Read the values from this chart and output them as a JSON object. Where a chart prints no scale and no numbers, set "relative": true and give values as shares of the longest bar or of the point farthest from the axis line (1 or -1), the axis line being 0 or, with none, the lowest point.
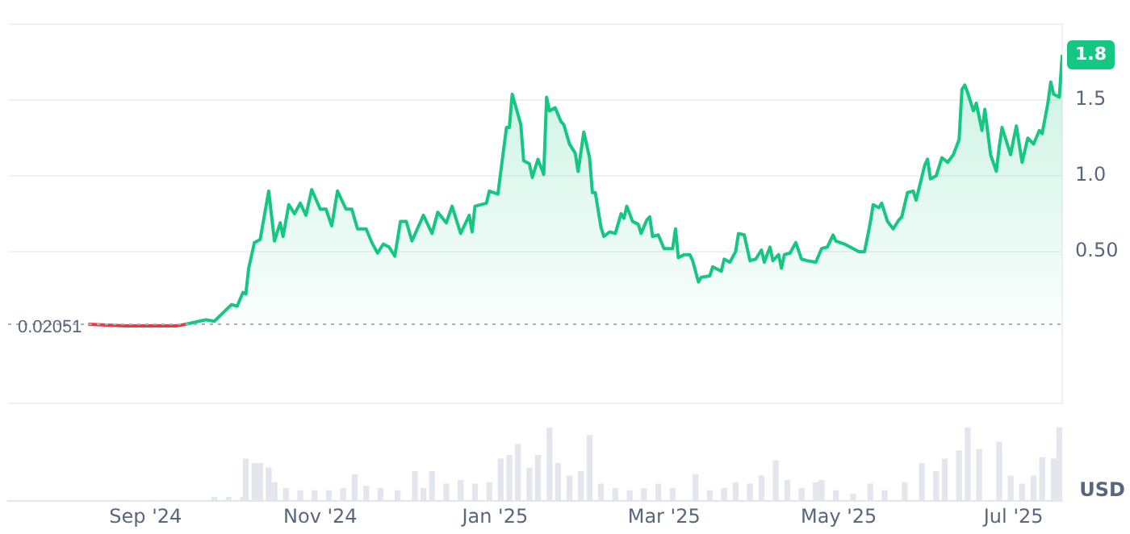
{
  "chart_data": [
    {
      "type": "line",
      "xlim": [
        "2024-07-15",
        "2025-07-18"
      ],
      "ylim": [
        -0.5,
        2.0
      ],
      "yticks": [
        {
          "value": -0.5,
          "label": null
        },
        {
          "value": 0.5,
          "label": "0.50"
        },
        {
          "value": 1,
          "label": "1.0"
        },
        {
          "value": 1.5,
          "label": "1.5"
        },
        {
          "value": 2.0,
          "label": null
        }
      ],
      "tick_labels": "y",
      "grid": "y",
      "legend": false,
      "marker": "none",
      "line_style": "solid",
      "ref_lines": [
        {
          "axis": "y",
          "value": 0.02051,
          "label": "0.02051",
          "color": "#a6b0c3",
          "line_style": "dotted"
        }
      ],
      "annotations": [
        {
          "text": "1.8",
          "x": "2025-07-18",
          "y": 1.8
        }
      ],
      "series": [
        {
          "color": "#ea3943",
          "x": [
            "2024-08-12",
            "2024-08-25",
            "2024-09-12",
            "2024-09-15"
          ],
          "values": [
            0.02,
            0.01,
            0.01,
            0.02
          ]
        },
        {
          "type": "area",
          "color": "#16c784",
          "x": [
            "2024-09-15",
            "2024-09-22",
            "2024-09-25",
            "2024-10-01",
            "2024-10-03",
            "2024-10-05",
            "2024-10-06",
            "2024-10-07",
            "2024-10-09",
            "2024-10-11",
            "2024-10-14",
            "2024-10-16",
            "2024-10-18",
            "2024-10-19",
            "2024-10-21",
            "2024-10-23",
            "2024-10-25",
            "2024-10-27",
            "2024-10-29",
            "2024-11-01",
            "2024-11-03",
            "2024-11-05",
            "2024-11-07",
            "2024-11-10",
            "2024-11-12",
            "2024-11-14",
            "2024-11-17",
            "2024-11-19",
            "2024-11-21",
            "2024-11-23",
            "2024-11-25",
            "2024-11-27",
            "2024-11-29",
            "2024-12-01",
            "2024-12-03",
            "2024-12-07",
            "2024-12-10",
            "2024-12-12",
            "2024-12-15",
            "2024-12-17",
            "2024-12-20",
            "2024-12-23",
            "2024-12-24",
            "2024-12-25",
            "2024-12-29",
            "2024-12-30",
            "2025-01-02",
            "2025-01-05",
            "2025-01-06",
            "2025-01-07",
            "2025-01-10",
            "2025-01-11",
            "2025-01-13",
            "2025-01-14",
            "2025-01-16",
            "2025-01-18",
            "2025-01-19",
            "2025-01-20",
            "2025-01-22",
            "2025-01-24",
            "2025-01-25",
            "2025-01-27",
            "2025-01-29",
            "2025-01-30",
            "2025-02-01",
            "2025-02-03",
            "2025-02-04",
            "2025-02-05",
            "2025-02-07",
            "2025-02-08",
            "2025-02-10",
            "2025-02-12",
            "2025-02-14",
            "2025-02-15",
            "2025-02-16",
            "2025-02-18",
            "2025-02-20",
            "2025-02-21",
            "2025-02-23",
            "2025-02-24",
            "2025-02-25",
            "2025-02-27",
            "2025-03-01",
            "2025-03-04",
            "2025-03-05",
            "2025-03-06",
            "2025-03-08",
            "2025-03-10",
            "2025-03-11",
            "2025-03-13",
            "2025-03-14",
            "2025-03-17",
            "2025-03-18",
            "2025-03-21",
            "2025-03-22",
            "2025-03-24",
            "2025-03-26",
            "2025-03-27",
            "2025-03-29",
            "2025-03-31",
            "2025-04-02",
            "2025-04-04",
            "2025-04-05",
            "2025-04-07",
            "2025-04-08",
            "2025-04-10",
            "2025-04-11",
            "2025-04-12",
            "2025-04-14",
            "2025-04-16",
            "2025-04-18",
            "2025-04-20",
            "2025-04-23",
            "2025-04-25",
            "2025-04-27",
            "2025-04-29",
            "2025-04-30",
            "2025-05-03",
            "2025-05-05",
            "2025-05-08",
            "2025-05-10",
            "2025-05-12",
            "2025-05-13",
            "2025-05-15",
            "2025-05-16",
            "2025-05-18",
            "2025-05-20",
            "2025-05-22",
            "2025-05-23",
            "2025-05-25",
            "2025-05-27",
            "2025-05-28",
            "2025-05-31",
            "2025-06-01",
            "2025-06-02",
            "2025-06-04",
            "2025-06-06",
            "2025-06-08",
            "2025-06-10",
            "2025-06-12",
            "2025-06-13",
            "2025-06-14",
            "2025-06-15",
            "2025-06-17",
            "2025-06-18",
            "2025-06-20",
            "2025-06-21",
            "2025-06-23",
            "2025-06-25",
            "2025-06-26",
            "2025-06-27",
            "2025-06-30",
            "2025-07-01",
            "2025-07-02",
            "2025-07-04",
            "2025-07-06",
            "2025-07-08",
            "2025-07-10",
            "2025-07-11",
            "2025-07-13",
            "2025-07-14",
            "2025-07-15",
            "2025-07-17",
            "2025-07-18"
          ],
          "values": [
            0.02,
            0.05,
            0.04,
            0.15,
            0.14,
            0.23,
            0.22,
            0.39,
            0.56,
            0.58,
            0.9,
            0.57,
            0.69,
            0.6,
            0.81,
            0.75,
            0.82,
            0.74,
            0.91,
            0.78,
            0.78,
            0.67,
            0.9,
            0.78,
            0.78,
            0.65,
            0.65,
            0.56,
            0.49,
            0.55,
            0.53,
            0.47,
            0.7,
            0.7,
            0.57,
            0.74,
            0.62,
            0.76,
            0.69,
            0.8,
            0.62,
            0.74,
            0.63,
            0.8,
            0.82,
            0.9,
            0.88,
            1.32,
            1.32,
            1.54,
            1.34,
            1.1,
            1.08,
            0.99,
            1.11,
            1.01,
            1.52,
            1.43,
            1.45,
            1.36,
            1.34,
            1.21,
            1.15,
            1.03,
            1.29,
            1.12,
            0.89,
            0.89,
            0.66,
            0.6,
            0.63,
            0.62,
            0.75,
            0.72,
            0.8,
            0.7,
            0.68,
            0.62,
            0.71,
            0.73,
            0.6,
            0.61,
            0.52,
            0.52,
            0.65,
            0.46,
            0.48,
            0.48,
            0.44,
            0.3,
            0.33,
            0.34,
            0.4,
            0.37,
            0.45,
            0.43,
            0.5,
            0.62,
            0.61,
            0.44,
            0.45,
            0.51,
            0.43,
            0.53,
            0.44,
            0.48,
            0.39,
            0.48,
            0.49,
            0.56,
            0.45,
            0.44,
            0.43,
            0.52,
            0.53,
            0.61,
            0.57,
            0.55,
            0.53,
            0.5,
            0.5,
            0.69,
            0.81,
            0.79,
            0.82,
            0.7,
            0.65,
            0.71,
            0.73,
            0.89,
            0.9,
            0.84,
            1.07,
            1.11,
            0.98,
            1.0,
            1.12,
            1.09,
            1.14,
            1.24,
            1.57,
            1.6,
            1.55,
            1.43,
            1.48,
            1.3,
            1.44,
            1.14,
            1.03,
            1.19,
            1.32,
            1.14,
            1.24,
            1.33,
            1.09,
            1.25,
            1.21,
            1.3,
            1.28,
            1.48,
            1.62,
            1.54,
            1.52,
            1.8
          ]
        }
      ]
    },
    {
      "type": "bar",
      "relative": true,
      "xlim": [
        "2024-07-15",
        "2025-07-18"
      ],
      "xticks": [
        {
          "value": "2024-09-01",
          "label": "Sep '24"
        },
        {
          "value": "2024-11-01",
          "label": "Nov '24"
        },
        {
          "value": "2025-01-01",
          "label": "Jan '25"
        },
        {
          "value": "2025-03-01",
          "label": "Mar '25"
        },
        {
          "value": "2025-05-01",
          "label": "May '25"
        },
        {
          "value": "2025-07-01",
          "label": "Jul '25"
        }
      ],
      "tick_labels": "x",
      "legend": false,
      "annotations": [
        "USD"
      ],
      "series": [
        {
          "color": "#e3e6ed",
          "x": [
            "2024-09-25",
            "2024-09-30",
            "2024-10-05",
            "2024-10-06",
            "2024-10-09",
            "2024-10-11",
            "2024-10-14",
            "2024-10-16",
            "2024-10-20",
            "2024-10-25",
            "2024-10-30",
            "2024-11-04",
            "2024-11-09",
            "2024-11-13",
            "2024-11-17",
            "2024-11-22",
            "2024-11-28",
            "2024-12-04",
            "2024-12-07",
            "2024-12-10",
            "2024-12-15",
            "2024-12-20",
            "2024-12-25",
            "2024-12-30",
            "2025-01-03",
            "2025-01-06",
            "2025-01-09",
            "2025-01-13",
            "2025-01-16",
            "2025-01-20",
            "2025-01-23",
            "2025-01-27",
            "2025-01-31",
            "2025-02-03",
            "2025-02-07",
            "2025-02-12",
            "2025-02-17",
            "2025-02-22",
            "2025-02-27",
            "2025-03-04",
            "2025-03-12",
            "2025-03-17",
            "2025-03-22",
            "2025-03-26",
            "2025-03-31",
            "2025-04-04",
            "2025-04-09",
            "2025-04-13",
            "2025-04-18",
            "2025-04-23",
            "2025-04-25",
            "2025-04-30",
            "2025-05-06",
            "2025-05-12",
            "2025-05-17",
            "2025-05-24",
            "2025-05-30",
            "2025-06-04",
            "2025-06-07",
            "2025-06-12",
            "2025-06-15",
            "2025-06-19",
            "2025-06-26",
            "2025-06-30",
            "2025-07-04",
            "2025-07-08",
            "2025-07-11",
            "2025-07-15",
            "2025-07-17"
          ],
          "values": [
            0.05,
            0.05,
            0.05,
            0.57,
            0.51,
            0.51,
            0.45,
            0.25,
            0.17,
            0.14,
            0.14,
            0.14,
            0.17,
            0.36,
            0.2,
            0.17,
            0.14,
            0.4,
            0.17,
            0.4,
            0.23,
            0.28,
            0.23,
            0.25,
            0.57,
            0.62,
            0.77,
            0.45,
            0.62,
            1,
            0.51,
            0.34,
            0.4,
            0.89,
            0.23,
            0.17,
            0.14,
            0.17,
            0.23,
            0.17,
            0.36,
            0.14,
            0.17,
            0.25,
            0.23,
            0.34,
            0.55,
            0.28,
            0.17,
            0.25,
            0.28,
            0.14,
            0.09,
            0.23,
            0.14,
            0.25,
            0.51,
            0.4,
            0.57,
            0.68,
            1,
            0.7,
            0.8,
            0.34,
            0.23,
            0.34,
            0.59,
            0.57,
            1
          ]
        }
      ]
    }
  ]
}
